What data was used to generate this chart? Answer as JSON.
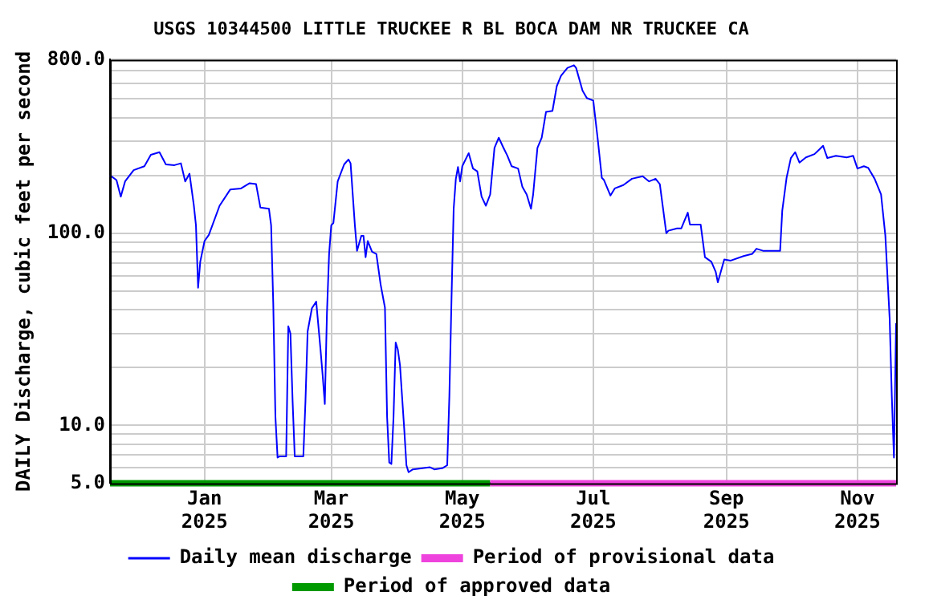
{
  "chart_data": {
    "type": "line",
    "title": "USGS 10344500 LITTLE TRUCKEE R BL BOCA DAM NR TRUCKEE CA",
    "ylabel": "DAILY Discharge, cubic feet per second",
    "log": "y",
    "grid": true,
    "legend": "bottom",
    "marker": "none",
    "line_style": "solid",
    "xlim": [
      "2024-11-18",
      "2025-11-19"
    ],
    "xticks": [
      {
        "value": "2025-01-01",
        "label": "Jan 2025"
      },
      {
        "value": "2025-03-01",
        "label": "Mar 2025"
      },
      {
        "value": "2025-05-01",
        "label": "May 2025"
      },
      {
        "value": "2025-07-01",
        "label": "Jul 2025"
      },
      {
        "value": "2025-09-01",
        "label": "Sep 2025"
      },
      {
        "value": "2025-11-01",
        "label": "Nov 2025"
      }
    ],
    "ylim": [
      5,
      800
    ],
    "yticks": [
      {
        "value": 5,
        "label": "5.0"
      },
      {
        "value": 6,
        "label": null
      },
      {
        "value": 7,
        "label": null
      },
      {
        "value": 8,
        "label": null
      },
      {
        "value": 9,
        "label": null
      },
      {
        "value": 10,
        "label": "10.0"
      },
      {
        "value": 20,
        "label": null
      },
      {
        "value": 30,
        "label": null
      },
      {
        "value": 40,
        "label": null
      },
      {
        "value": 50,
        "label": null
      },
      {
        "value": 60,
        "label": null
      },
      {
        "value": 70,
        "label": null
      },
      {
        "value": 80,
        "label": null
      },
      {
        "value": 90,
        "label": null
      },
      {
        "value": 100,
        "label": "100.0"
      },
      {
        "value": 200,
        "label": null
      },
      {
        "value": 300,
        "label": null
      },
      {
        "value": 400,
        "label": null
      },
      {
        "value": 500,
        "label": null
      },
      {
        "value": 600,
        "label": null
      },
      {
        "value": 700,
        "label": null
      },
      {
        "value": 800,
        "label": "800.0"
      }
    ],
    "series": [
      {
        "name": "Period of provisional data",
        "color": "#ee44dd",
        "x": [
          "2025-05-14",
          "2025-11-19"
        ],
        "values": [
          5,
          5
        ]
      },
      {
        "name": "Period of approved data",
        "color": "#009900",
        "x": [
          "2024-11-18",
          "2025-05-14"
        ],
        "values": [
          5,
          5
        ]
      },
      {
        "name": "Daily mean discharge",
        "color": "#0000ff",
        "x": [
          "2024-11-18",
          "2024-11-21",
          "2024-11-23",
          "2024-11-25",
          "2024-11-29",
          "2024-12-04",
          "2024-12-07",
          "2024-12-11",
          "2024-12-14",
          "2024-12-18",
          "2024-12-21",
          "2024-12-23",
          "2024-12-25",
          "2024-12-27",
          "2024-12-28",
          "2024-12-29",
          "2024-12-30",
          "2025-01-01",
          "2025-01-03",
          "2025-01-08",
          "2025-01-13",
          "2025-01-18",
          "2025-01-22",
          "2025-01-25",
          "2025-01-27",
          "2025-01-31",
          "2025-02-01",
          "2025-02-02",
          "2025-02-03",
          "2025-02-04",
          "2025-02-05",
          "2025-02-08",
          "2025-02-09",
          "2025-02-10",
          "2025-02-11",
          "2025-02-12",
          "2025-02-16",
          "2025-02-17",
          "2025-02-18",
          "2025-02-20",
          "2025-02-22",
          "2025-02-24",
          "2025-02-25",
          "2025-02-26",
          "2025-02-27",
          "2025-02-28",
          "2025-03-01",
          "2025-03-02",
          "2025-03-04",
          "2025-03-07",
          "2025-03-09",
          "2025-03-10",
          "2025-03-12",
          "2025-03-13",
          "2025-03-15",
          "2025-03-16",
          "2025-03-17",
          "2025-03-18",
          "2025-03-20",
          "2025-03-22",
          "2025-03-24",
          "2025-03-26",
          "2025-03-27",
          "2025-03-28",
          "2025-03-29",
          "2025-03-30",
          "2025-03-31",
          "2025-04-01",
          "2025-04-02",
          "2025-04-04",
          "2025-04-05",
          "2025-04-06",
          "2025-04-08",
          "2025-04-16",
          "2025-04-18",
          "2025-04-22",
          "2025-04-24",
          "2025-04-25",
          "2025-04-26",
          "2025-04-27",
          "2025-04-28",
          "2025-04-29",
          "2025-04-30",
          "2025-05-01",
          "2025-05-04",
          "2025-05-06",
          "2025-05-08",
          "2025-05-10",
          "2025-05-12",
          "2025-05-14",
          "2025-05-16",
          "2025-05-18",
          "2025-05-20",
          "2025-05-22",
          "2025-05-24",
          "2025-05-27",
          "2025-05-29",
          "2025-05-31",
          "2025-06-02",
          "2025-06-03",
          "2025-06-05",
          "2025-06-07",
          "2025-06-09",
          "2025-06-12",
          "2025-06-14",
          "2025-06-16",
          "2025-06-19",
          "2025-06-22",
          "2025-06-23",
          "2025-06-26",
          "2025-06-28",
          "2025-07-01",
          "2025-07-03",
          "2025-07-05",
          "2025-07-06",
          "2025-07-09",
          "2025-07-11",
          "2025-07-15",
          "2025-07-19",
          "2025-07-24",
          "2025-07-27",
          "2025-07-30",
          "2025-08-01",
          "2025-08-04",
          "2025-08-05",
          "2025-08-09",
          "2025-08-11",
          "2025-08-14",
          "2025-08-15",
          "2025-08-20",
          "2025-08-22",
          "2025-08-25",
          "2025-08-27",
          "2025-08-28",
          "2025-08-31",
          "2025-09-03",
          "2025-09-09",
          "2025-09-13",
          "2025-09-15",
          "2025-09-18",
          "2025-09-26",
          "2025-09-27",
          "2025-09-29",
          "2025-10-01",
          "2025-10-03",
          "2025-10-05",
          "2025-10-08",
          "2025-10-12",
          "2025-10-16",
          "2025-10-18",
          "2025-10-22",
          "2025-10-27",
          "2025-10-30",
          "2025-11-01",
          "2025-11-04",
          "2025-11-06",
          "2025-11-09",
          "2025-11-12",
          "2025-11-14",
          "2025-11-16",
          "2025-11-17",
          "2025-11-18",
          "2025-11-19"
        ],
        "values": [
          200,
          189,
          155,
          186,
          213,
          223,
          256,
          264,
          228,
          226,
          231,
          186,
          204,
          140,
          110,
          52,
          71,
          91,
          98,
          139,
          169,
          171,
          182,
          180,
          136,
          134,
          110,
          43,
          11.1,
          6.8,
          6.9,
          6.9,
          32.8,
          30,
          13.4,
          6.9,
          6.9,
          13.4,
          30.8,
          40.7,
          44,
          24.8,
          18.2,
          12.9,
          38.3,
          78,
          110,
          113,
          186,
          228,
          242,
          231,
          110,
          81,
          97,
          97,
          75,
          91,
          80,
          78,
          54,
          41,
          11.1,
          6.4,
          6.3,
          11.1,
          27,
          24.8,
          20.6,
          9.5,
          6.2,
          5.7,
          5.9,
          6.05,
          5.9,
          6.0,
          6.2,
          14.2,
          46,
          134,
          191,
          221,
          186,
          223,
          261,
          217,
          210,
          155,
          139,
          159,
          278,
          314,
          281,
          253,
          223,
          217,
          174,
          159,
          134,
          159,
          278,
          314,
          428,
          433,
          582,
          660,
          725,
          748,
          725,
          552,
          505,
          490,
          314,
          194,
          189,
          157,
          171,
          178,
          192,
          198,
          186,
          192,
          180,
          100,
          103,
          106,
          106,
          128,
          111,
          111,
          75,
          71,
          63,
          55.5,
          73,
          72,
          76,
          78,
          83,
          81,
          81,
          131,
          194,
          246,
          264,
          233,
          248,
          258,
          285,
          246,
          253,
          248,
          253,
          217,
          223,
          219,
          192,
          159,
          97,
          36,
          14.2,
          6.8,
          34
        ]
      }
    ]
  }
}
